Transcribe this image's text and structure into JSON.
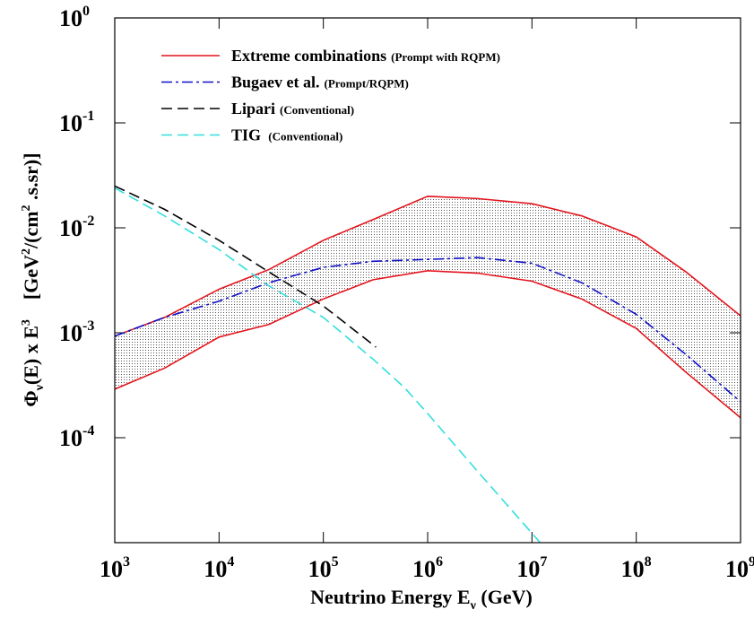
{
  "chart_data": {
    "type": "line",
    "xlabel": [
      "Neutrino Energy  E",
      "ν",
      " (GeV)"
    ],
    "ylabel": [
      "Φ",
      "ν",
      "(E) x E",
      "3",
      "[GeV",
      "2",
      "/(cm",
      "2",
      " .s.sr)]"
    ],
    "log_x": true,
    "log_y": true,
    "xlim": [
      1000,
      1000000000
    ],
    "ylim": [
      1e-05,
      1
    ],
    "xticks": [
      {
        "value": 1000,
        "label": "10",
        "exponent": "3"
      },
      {
        "value": 10000,
        "label": "10",
        "exponent": "4"
      },
      {
        "value": 100000,
        "label": "10",
        "exponent": "5"
      },
      {
        "value": 1000000,
        "label": "10",
        "exponent": "6"
      },
      {
        "value": 10000000,
        "label": "10",
        "exponent": "7"
      },
      {
        "value": 100000000,
        "label": "10",
        "exponent": "8"
      },
      {
        "value": 1000000000,
        "label": "10",
        "exponent": "9"
      }
    ],
    "yticks": [
      {
        "value": 1,
        "label": "10",
        "exponent": "0"
      },
      {
        "value": 0.1,
        "label": "10",
        "exponent": "-1"
      },
      {
        "value": 0.01,
        "label": "10",
        "exponent": "-2"
      },
      {
        "value": 0.001,
        "label": "10",
        "exponent": "-3"
      },
      {
        "value": 0.0001,
        "label": "10",
        "exponent": "-4"
      }
    ],
    "series": [
      {
        "name": "Extreme combinations",
        "note": "(Prompt with RQPM)",
        "color": "#e3141c",
        "style": "solid",
        "band": true,
        "x": [
          1000,
          3000,
          10000,
          30000,
          100000,
          300000,
          1000000,
          3000000,
          10000000,
          30000000,
          100000000,
          300000000,
          1000000000
        ],
        "values": [
          0.00093,
          0.0014,
          0.0026,
          0.004,
          0.0076,
          0.012,
          0.02,
          0.019,
          0.017,
          0.013,
          0.0082,
          0.0038,
          0.00145
        ],
        "values_low": [
          0.00029,
          0.00046,
          0.00091,
          0.0012,
          0.0021,
          0.0032,
          0.0039,
          0.0037,
          0.0031,
          0.0021,
          0.0011,
          0.00042,
          0.000155
        ]
      },
      {
        "name": "Bugaev et al.",
        "note": "(Prompt/RQPM)",
        "color": "#1010c8",
        "style": "dashdot",
        "x": [
          1000,
          3000,
          10000,
          30000,
          100000,
          300000,
          1000000,
          3000000,
          10000000,
          30000000,
          100000000,
          300000000,
          1000000000
        ],
        "values": [
          0.00093,
          0.0014,
          0.002,
          0.003,
          0.0042,
          0.0048,
          0.005,
          0.0052,
          0.0046,
          0.003,
          0.0015,
          0.00062,
          0.00022
        ]
      },
      {
        "name": "Lipari",
        "note": "(Conventional)",
        "color": "#000000",
        "style": "dashed",
        "x": [
          1000,
          3000,
          10000,
          30000,
          100000,
          320000
        ],
        "values": [
          0.025,
          0.015,
          0.0076,
          0.0038,
          0.0018,
          0.00073
        ]
      },
      {
        "name": "TIG",
        "note": " (Conventional)",
        "color": "#33dede",
        "style": "dashed",
        "x": [
          1000,
          3000,
          10000,
          30000,
          100000,
          300000,
          600000,
          1000000,
          3000000,
          12000000
        ],
        "values": [
          0.024,
          0.013,
          0.0062,
          0.0028,
          0.0014,
          0.00056,
          0.0003,
          0.00017,
          4.8e-05,
          1e-05
        ]
      }
    ]
  }
}
